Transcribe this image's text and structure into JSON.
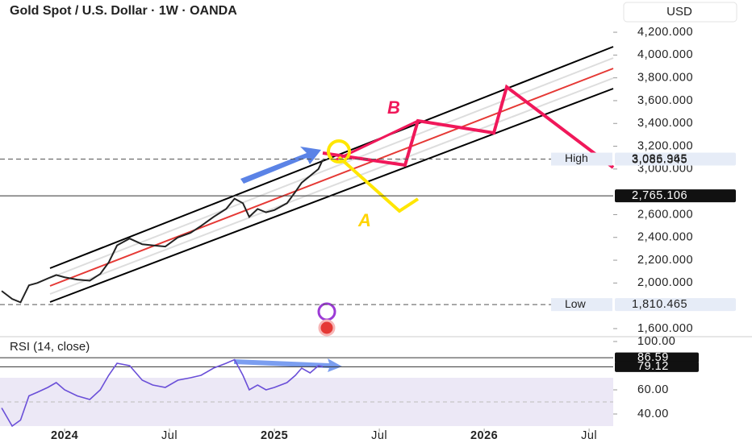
{
  "chart_data": [
    {
      "type": "line",
      "title": "Gold Spot / U.S. Dollar · 1W · OANDA",
      "currency": "USD",
      "x": [
        2023.7,
        2023.75,
        2023.79,
        2023.83,
        2023.87,
        2023.92,
        2023.96,
        2024.0,
        2024.06,
        2024.12,
        2024.17,
        2024.21,
        2024.25,
        2024.31,
        2024.37,
        2024.42,
        2024.48,
        2024.54,
        2024.6,
        2024.65,
        2024.71,
        2024.77,
        2024.81,
        2024.85,
        2024.88,
        2024.92,
        2024.96,
        2025.0,
        2025.06,
        2025.1,
        2025.13,
        2025.17,
        2025.21,
        2025.23
      ],
      "values": [
        1930,
        1860,
        1830,
        1980,
        2000,
        2040,
        2070,
        2050,
        2030,
        2020,
        2080,
        2180,
        2330,
        2390,
        2340,
        2330,
        2320,
        2400,
        2440,
        2500,
        2580,
        2650,
        2740,
        2700,
        2580,
        2650,
        2620,
        2640,
        2700,
        2800,
        2880,
        2940,
        3000,
        3080
      ],
      "color": "#222222",
      "xlim": [
        2023.692,
        2026.615
      ],
      "ylim": [
        1529,
        4483
      ],
      "yticks": [
        {
          "value": 1600,
          "label": "1,600.000"
        },
        {
          "value": 2000,
          "label": "2,000.000"
        },
        {
          "value": 2200,
          "label": "2,200.000"
        },
        {
          "value": 2400,
          "label": "2,400.000"
        },
        {
          "value": 2600,
          "label": "2,600.000"
        },
        {
          "value": 3000,
          "label": "3,000.000"
        },
        {
          "value": 3200,
          "label": "3,200.000"
        },
        {
          "value": 3400,
          "label": "3,400.000"
        },
        {
          "value": 3600,
          "label": "3,600.000"
        },
        {
          "value": 3800,
          "label": "3,800.000"
        },
        {
          "value": 4000,
          "label": "4,000.000"
        },
        {
          "value": 4200,
          "label": "4,200.000"
        }
      ],
      "price_lines": [
        {
          "name": "High",
          "value": 3086.965,
          "label": "3,086.965"
        },
        {
          "value": 3085.345,
          "label": "3,085.345"
        },
        {
          "value": 2765.106,
          "label": "2,765.106"
        },
        {
          "name": "Low",
          "value": 1810.465,
          "label": "1,810.465"
        }
      ],
      "annotations": [
        "B",
        "A"
      ]
    },
    {
      "type": "line",
      "title": "RSI (14, close)",
      "x": [
        2023.7,
        2023.75,
        2023.79,
        2023.83,
        2023.87,
        2023.92,
        2023.96,
        2024.0,
        2024.06,
        2024.12,
        2024.17,
        2024.21,
        2024.25,
        2024.31,
        2024.37,
        2024.42,
        2024.48,
        2024.54,
        2024.6,
        2024.65,
        2024.71,
        2024.77,
        2024.81,
        2024.85,
        2024.88,
        2024.92,
        2024.96,
        2025.0,
        2025.06,
        2025.1,
        2025.13,
        2025.17,
        2025.21,
        2025.23
      ],
      "values": [
        45,
        30,
        35,
        55,
        58,
        62,
        66,
        60,
        55,
        52,
        60,
        72,
        82,
        80,
        68,
        64,
        62,
        68,
        70,
        72,
        78,
        82,
        85,
        72,
        60,
        64,
        60,
        62,
        66,
        72,
        78,
        74,
        80,
        79.12
      ],
      "color": "#6a4fd8",
      "xlim": [
        2023.692,
        2026.615
      ],
      "ylim": [
        28,
        104
      ],
      "xticks": [
        {
          "value": 2024,
          "label": "2024"
        },
        {
          "value": 2024.5,
          "label": "Jul"
        },
        {
          "value": 2025,
          "label": "2025"
        },
        {
          "value": 2025.5,
          "label": "Jul"
        },
        {
          "value": 2026,
          "label": "2026"
        },
        {
          "value": 2026.5,
          "label": "Jul"
        }
      ],
      "yticks": [
        {
          "value": 40,
          "label": "40.00"
        },
        {
          "value": 60,
          "label": "60.00"
        },
        {
          "value": 100,
          "label": "100.00"
        }
      ],
      "price_lines": [
        86.59,
        79.12
      ]
    }
  ]
}
